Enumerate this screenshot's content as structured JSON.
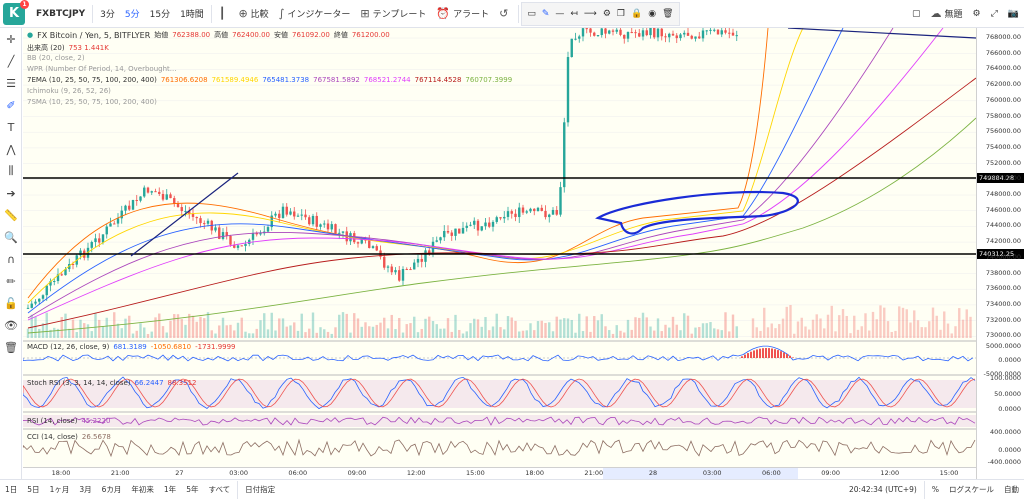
{
  "topbar": {
    "logo": "K",
    "badge": "1",
    "symbol": "FXBTCJPY",
    "intervals": [
      "3分",
      "5分",
      "15分",
      "1時間"
    ],
    "active_interval": "5分",
    "compare": "比較",
    "indicators": "インジケーター",
    "template": "テンプレート",
    "alert": "アラート",
    "untitled": "無題"
  },
  "legend": {
    "title": "FX Bitcoin / Yen, 5, BITFLYER",
    "open_label": "始値",
    "open": "762388.00",
    "high_label": "高値",
    "high": "762400.00",
    "low_label": "安値",
    "low": "761092.00",
    "close_label": "終値",
    "close": "761200.00",
    "volume": "出来高 (20)",
    "volume_vals": "753  1.441K",
    "bb": "BB (20, close, 2)",
    "wpr": "WPR (Number Of Period, 14, Overbought...",
    "ema7": "7EMA (10, 25, 50, 75, 100, 200, 400)",
    "ema_vals": [
      "761306.6208",
      "761589.4946",
      "765481.3738",
      "767581.5892",
      "768521.2744",
      "767114.4528",
      "760707.3999"
    ],
    "ema_colors": [
      "#ff6d00",
      "#ffd600",
      "#2962ff",
      "#ab47bc",
      "#e040fb",
      "#b71c1c",
      "#7cb342"
    ],
    "ichimoku": "Ichimoku (9, 26, 52, 26)",
    "sma7": "7SMA (10, 25, 50, 75, 100, 200, 400)"
  },
  "price_axis": {
    "labels": [
      "768000.00",
      "766000.00",
      "764000.00",
      "762000.00",
      "760000.00",
      "758000.00",
      "756000.00",
      "754000.00",
      "752000.00",
      "750000.00",
      "748000.00",
      "746000.00",
      "744000.00",
      "742000.00",
      "740000.00",
      "738000.00",
      "736000.00",
      "734000.00",
      "732000.00",
      "730000.00"
    ],
    "hl_upper": "749884.28",
    "hl_lower": "740312.25"
  },
  "macd": {
    "label": "MACD (12, 26, close, 9)",
    "vals": [
      "681.3189",
      "-1050.6810",
      "-1731.9999"
    ],
    "axis": [
      "5000.0000",
      "0.0000",
      "-5000.0000"
    ]
  },
  "stoch": {
    "label": "Stoch RSI (3, 3, 14, 14, close)",
    "vals": [
      "66.2447",
      "88.3512"
    ],
    "axis": [
      "100.0000",
      "50.0000",
      "0.0000"
    ]
  },
  "rsi": {
    "label": "RSI (14, close)",
    "val": "45.2220"
  },
  "cci": {
    "label": "CCI (14, close)",
    "val": "26.5678",
    "axis": [
      "400.0000",
      "0.0000",
      "-400.0000"
    ]
  },
  "time_axis": [
    "18:00",
    "21:00",
    "27",
    "03:00",
    "06:00",
    "09:00",
    "12:00",
    "15:00",
    "18:00",
    "21:00",
    "28",
    "03:00",
    "06:00",
    "09:00",
    "12:00",
    "15:00"
  ],
  "bottombar": {
    "ranges": [
      "1日",
      "5日",
      "1ヶ月",
      "3月",
      "6カ月",
      "年初来",
      "1年",
      "5年",
      "すべて",
      "日付指定"
    ],
    "clock": "20:42:34 (UTC+9)",
    "percent": "%",
    "log": "ログスケール",
    "auto": "自動"
  }
}
